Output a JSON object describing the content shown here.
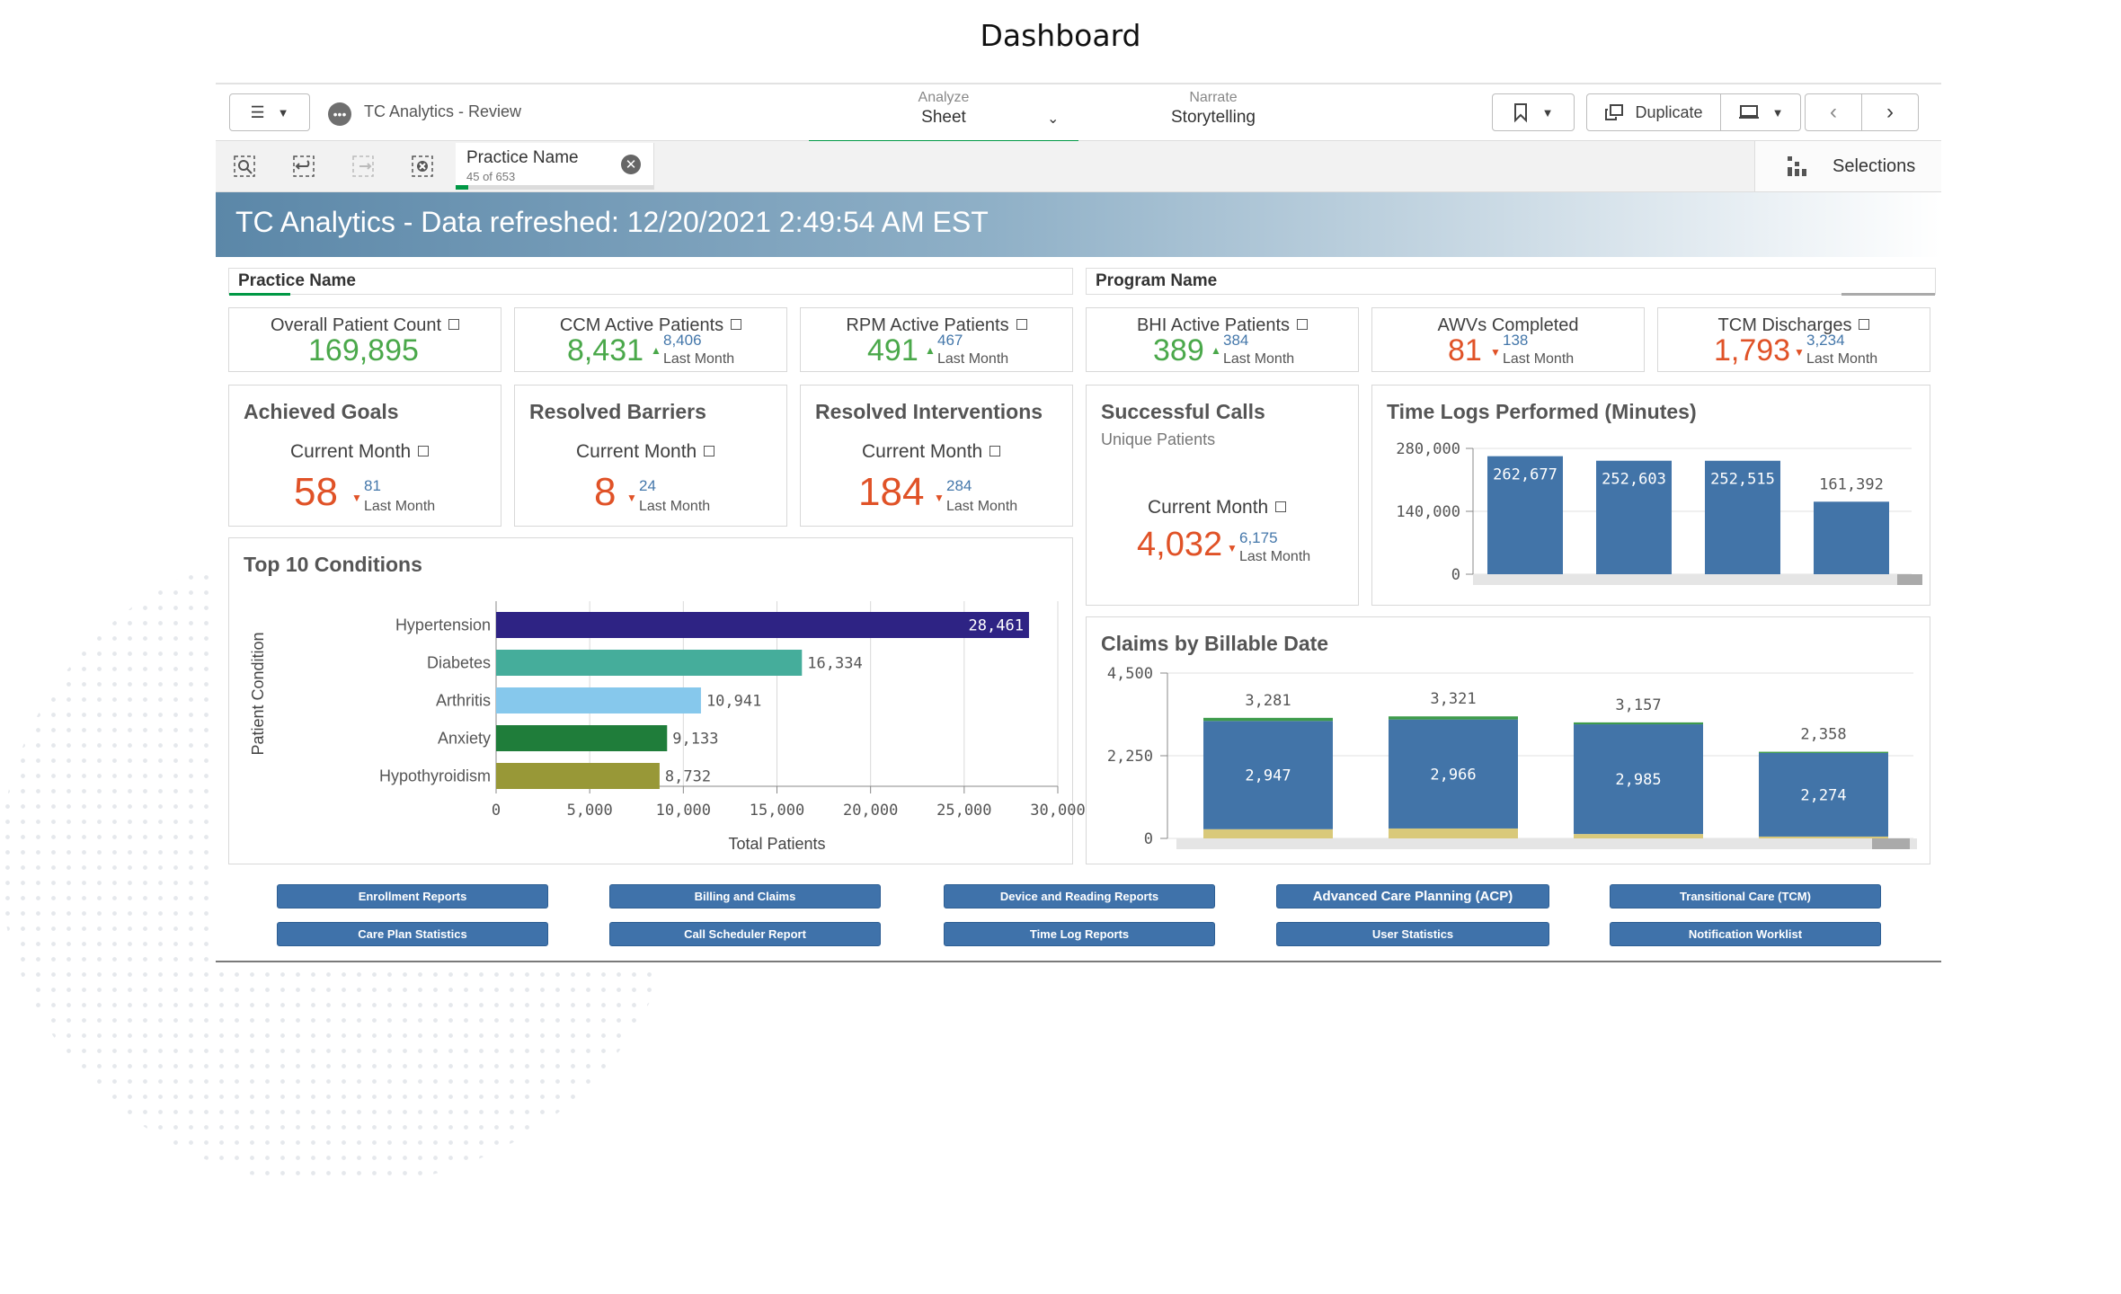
{
  "page_title": "Dashboard",
  "toolbar": {
    "app_name": "TC Analytics - Review",
    "analyze_label": "Analyze",
    "sheet_label": "Sheet",
    "narrate_label": "Narrate",
    "storytelling_label": "Storytelling",
    "duplicate_label": "Duplicate"
  },
  "selection": {
    "field": "Practice Name",
    "count": "45 of 653",
    "selections_label": "Selections"
  },
  "banner": "TC Analytics - Data refreshed: 12/20/2021 2:49:54 AM EST",
  "filters": {
    "practice": "Practice Name",
    "program": "Program Name"
  },
  "kpis": [
    {
      "title": "Overall Patient Count",
      "value": "169,895",
      "compare": "",
      "compare_label": ""
    },
    {
      "title": "CCM Active Patients",
      "value": "8,431",
      "compare": "8,406",
      "compare_label": "Last Month"
    },
    {
      "title": "RPM Active Patients",
      "value": "491",
      "compare": "467",
      "compare_label": "Last Month"
    },
    {
      "title": "BHI Active Patients",
      "value": "389",
      "compare": "384",
      "compare_label": "Last Month"
    },
    {
      "title": "AWVs Completed",
      "value": "81",
      "compare": "138",
      "compare_label": "Last Month"
    },
    {
      "title": "TCM Discharges",
      "value": "1,793",
      "compare": "3,234",
      "compare_label": "Last Month"
    }
  ],
  "goals": [
    {
      "title": "Achieved Goals",
      "period": "Current Month",
      "value": "58",
      "compare": "81",
      "compare_label": "Last Month"
    },
    {
      "title": "Resolved Barriers",
      "period": "Current Month",
      "value": "8",
      "compare": "24",
      "compare_label": "Last Month"
    },
    {
      "title": "Resolved Interventions",
      "period": "Current Month",
      "value": "184",
      "compare": "284",
      "compare_label": "Last Month"
    }
  ],
  "calls": {
    "title": "Successful Calls",
    "subtitle": "Unique Patients",
    "period": "Current Month",
    "value": "4,032",
    "compare": "6,175",
    "compare_label": "Last Month"
  },
  "colors": {
    "positive": "#4aa84a",
    "negative": "#e05227",
    "bar_blue": "#4274a8",
    "banner": "#5b87a8"
  },
  "buttons": [
    [
      "Enrollment Reports",
      "Billing and Claims",
      "Device and Reading Reports",
      "Advanced Care Planning (ACP)",
      "Transitional Care (TCM)"
    ],
    [
      "Care Plan Statistics",
      "Call Scheduler Report",
      "Time Log Reports",
      "User Statistics",
      "Notification Worklist"
    ]
  ],
  "chart_data": [
    {
      "type": "bar",
      "orientation": "horizontal",
      "title": "Top 10 Conditions",
      "xlabel": "Total Patients",
      "ylabel": "Patient Condition",
      "categories": [
        "Hypertension",
        "Diabetes",
        "Arthritis",
        "Anxiety",
        "Hypothyroidism"
      ],
      "values": [
        28461,
        16334,
        10941,
        9133,
        8732
      ],
      "value_labels": [
        "28,461",
        "16,334",
        "10,941",
        "9,133",
        "8,732"
      ],
      "colors": [
        "#2e2384",
        "#45ad9b",
        "#86c8ec",
        "#1f7d3a",
        "#989837"
      ],
      "xlim": [
        0,
        30000
      ],
      "ticks": [
        "0",
        "5,000",
        "10,000",
        "15,000",
        "20,000",
        "25,000",
        "30,000"
      ],
      "grid": true
    },
    {
      "type": "bar",
      "title": "Time Logs Performed (Minutes)",
      "categories": [
        "",
        "",
        "",
        ""
      ],
      "values": [
        262677,
        252603,
        252515,
        161392
      ],
      "value_labels": [
        "262,677",
        "252,603",
        "252,515",
        "161,392"
      ],
      "ylim": [
        0,
        280000
      ],
      "ticks": [
        "0",
        "140,000",
        "280,000"
      ]
    },
    {
      "type": "bar",
      "stacked": true,
      "title": "Claims by Billable Date",
      "categories": [
        "",
        "",
        "",
        ""
      ],
      "series": [
        {
          "values": [
            2947,
            2966,
            2985,
            2274
          ],
          "value_labels": [
            "2,947",
            "2,966",
            "2,985",
            "2,274"
          ]
        },
        {
          "values": [
            250,
            270,
            120,
            50
          ]
        },
        {
          "values": [
            84,
            85,
            52,
            34
          ]
        }
      ],
      "totals": [
        "3,281",
        "3,321",
        "3,157",
        "2,358"
      ],
      "total_values": [
        3281,
        3321,
        3157,
        2358
      ],
      "ylim": [
        0,
        4500
      ],
      "ticks": [
        "0",
        "2,250",
        "4,500"
      ]
    }
  ]
}
